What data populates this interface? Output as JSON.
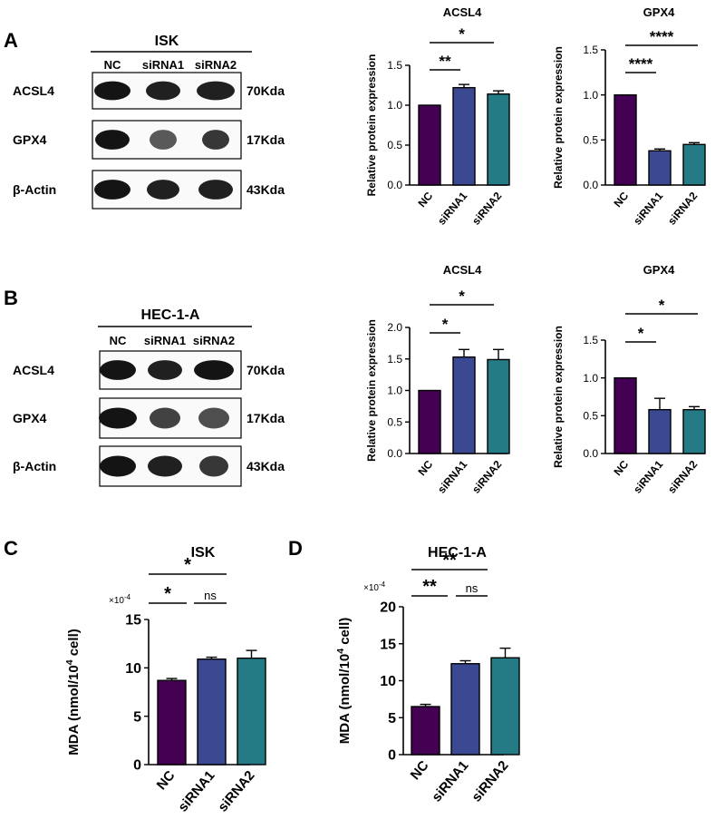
{
  "panel_letters": [
    "A",
    "B",
    "C",
    "D"
  ],
  "colors": {
    "nc": "#440154",
    "sirna1": "#3b4993",
    "sirna2": "#247b85",
    "band": "#141414"
  },
  "blots": [
    {
      "cell_line": "ISK",
      "lanes": [
        "NC",
        "siRNA1",
        "siRNA2"
      ],
      "rows": [
        {
          "protein": "ACSL4",
          "size": "70Kda"
        },
        {
          "protein": "GPX4",
          "size": "17Kda"
        },
        {
          "protein": "β-Actin",
          "size": "43Kda"
        }
      ]
    },
    {
      "cell_line": "HEC-1-A",
      "lanes": [
        "NC",
        "siRNA1",
        "siRNA2"
      ],
      "rows": [
        {
          "protein": "ACSL4",
          "size": "70Kda"
        },
        {
          "protein": "GPX4",
          "size": "17Kda"
        },
        {
          "protein": "β-Actin",
          "size": "43Kda"
        }
      ]
    }
  ],
  "chart_data": [
    {
      "type": "bar",
      "title": "ACSL4",
      "ylabel": "Relative protein expression",
      "xlabel": "",
      "categories": [
        "NC",
        "siRNA1",
        "siRNA2"
      ],
      "values": [
        1.0,
        1.22,
        1.14
      ],
      "errors": [
        0,
        0.04,
        0.04
      ],
      "ylim": [
        0,
        1.5
      ],
      "yticks": [
        "0.0",
        "0.5",
        "1.0",
        "1.5"
      ],
      "significance": [
        {
          "from": "NC",
          "to": "siRNA1",
          "label": "**"
        },
        {
          "from": "NC",
          "to": "siRNA2",
          "label": "*"
        }
      ]
    },
    {
      "type": "bar",
      "title": "GPX4",
      "ylabel": "Relative protein expression",
      "xlabel": "",
      "categories": [
        "NC",
        "siRNA1",
        "siRNA2"
      ],
      "values": [
        1.0,
        0.38,
        0.45
      ],
      "errors": [
        0,
        0.02,
        0.02
      ],
      "ylim": [
        0,
        1.5
      ],
      "yticks": [
        "0.0",
        "0.5",
        "1.0",
        "1.5"
      ],
      "significance": [
        {
          "from": "NC",
          "to": "siRNA1",
          "label": "****"
        },
        {
          "from": "NC",
          "to": "siRNA2",
          "label": "****"
        }
      ]
    },
    {
      "type": "bar",
      "title": "ACSL4",
      "ylabel": "Relative protein expression",
      "xlabel": "",
      "categories": [
        "NC",
        "siRNA1",
        "siRNA2"
      ],
      "values": [
        1.0,
        1.53,
        1.49
      ],
      "errors": [
        0,
        0.12,
        0.16
      ],
      "ylim": [
        0,
        2.0
      ],
      "yticks": [
        "0.0",
        "0.5",
        "1.0",
        "1.5",
        "2.0"
      ],
      "significance": [
        {
          "from": "NC",
          "to": "siRNA1",
          "label": "*"
        },
        {
          "from": "NC",
          "to": "siRNA2",
          "label": "*"
        }
      ]
    },
    {
      "type": "bar",
      "title": "GPX4",
      "ylabel": "Relative protein expression",
      "xlabel": "",
      "categories": [
        "NC",
        "siRNA1",
        "siRNA2"
      ],
      "values": [
        1.0,
        0.58,
        0.58
      ],
      "errors": [
        0,
        0.15,
        0.04
      ],
      "ylim": [
        0,
        1.5
      ],
      "yticks": [
        "0.0",
        "0.5",
        "1.0",
        "1.5"
      ],
      "significance": [
        {
          "from": "NC",
          "to": "siRNA1",
          "label": "*"
        },
        {
          "from": "NC",
          "to": "siRNA2",
          "label": "*"
        }
      ]
    },
    {
      "type": "bar",
      "title": "ISK",
      "ylabel": "MDA (nmol/10",
      "ylabel_sup": "4",
      "ylabel_tail": " cell)",
      "xlabel": "",
      "multiplier": "×10",
      "multiplier_sup": "-4",
      "categories": [
        "NC",
        "siRNA1",
        "siRNA2"
      ],
      "values": [
        8.7,
        10.9,
        11.0
      ],
      "errors": [
        0.2,
        0.2,
        0.8
      ],
      "ylim": [
        0,
        15
      ],
      "yticks": [
        "0",
        "5",
        "10",
        "15"
      ],
      "significance": [
        {
          "from": "NC",
          "to": "siRNA1",
          "label": "*"
        },
        {
          "from": "siRNA1",
          "to": "siRNA2",
          "label": "ns"
        },
        {
          "from": "NC",
          "to": "siRNA2",
          "label": "*"
        }
      ]
    },
    {
      "type": "bar",
      "title": "HEC-1-A",
      "ylabel": "MDA (nmol/10",
      "ylabel_sup": "4",
      "ylabel_tail": " cell)",
      "xlabel": "",
      "multiplier": "×10",
      "multiplier_sup": "-4",
      "categories": [
        "NC",
        "siRNA1",
        "siRNA2"
      ],
      "values": [
        6.5,
        12.3,
        13.1
      ],
      "errors": [
        0.3,
        0.4,
        1.3
      ],
      "ylim": [
        0,
        20
      ],
      "yticks": [
        "0",
        "5",
        "10",
        "15",
        "20"
      ],
      "significance": [
        {
          "from": "NC",
          "to": "siRNA1",
          "label": "**"
        },
        {
          "from": "siRNA1",
          "to": "siRNA2",
          "label": "ns"
        },
        {
          "from": "NC",
          "to": "siRNA2",
          "label": "**"
        }
      ]
    }
  ]
}
